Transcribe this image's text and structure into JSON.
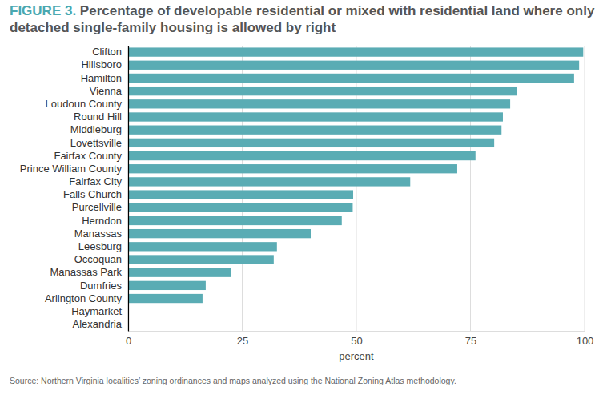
{
  "chart_data": {
    "type": "bar",
    "title": "FIGURE 3. Percentage of developable residential or mixed with residential land where only detached single-family housing is allowed by right",
    "categories": [
      "Clifton",
      "Hillsboro",
      "Hamilton",
      "Vienna",
      "Loudoun County",
      "Round Hill",
      "Middleburg",
      "Lovettsville",
      "Fairfax County",
      "Prince William County",
      "Fairfax City",
      "Falls Church",
      "Purcellville",
      "Herndon",
      "Manassas",
      "Leesburg",
      "Occoquan",
      "Manassas Park",
      "Dumfries",
      "Arlington County",
      "Haymarket",
      "Alexandria"
    ],
    "values": [
      99.7,
      98.8,
      97.7,
      85.1,
      83.7,
      82.1,
      81.8,
      80.2,
      76.1,
      72.1,
      61.8,
      49.3,
      49.2,
      46.8,
      40.0,
      32.6,
      31.9,
      22.5,
      17.0,
      16.3,
      0,
      0
    ],
    "color": "#5aacb4",
    "orientation": "horizontal",
    "xlabel": "percent",
    "xlim": [
      0,
      100
    ],
    "xticks": [
      0,
      25,
      50,
      75,
      100
    ],
    "grid": true,
    "source": "Source: Northern Virginia localities’ zoning ordinances and maps analyzed using the National Zoning Atlas methodology."
  }
}
